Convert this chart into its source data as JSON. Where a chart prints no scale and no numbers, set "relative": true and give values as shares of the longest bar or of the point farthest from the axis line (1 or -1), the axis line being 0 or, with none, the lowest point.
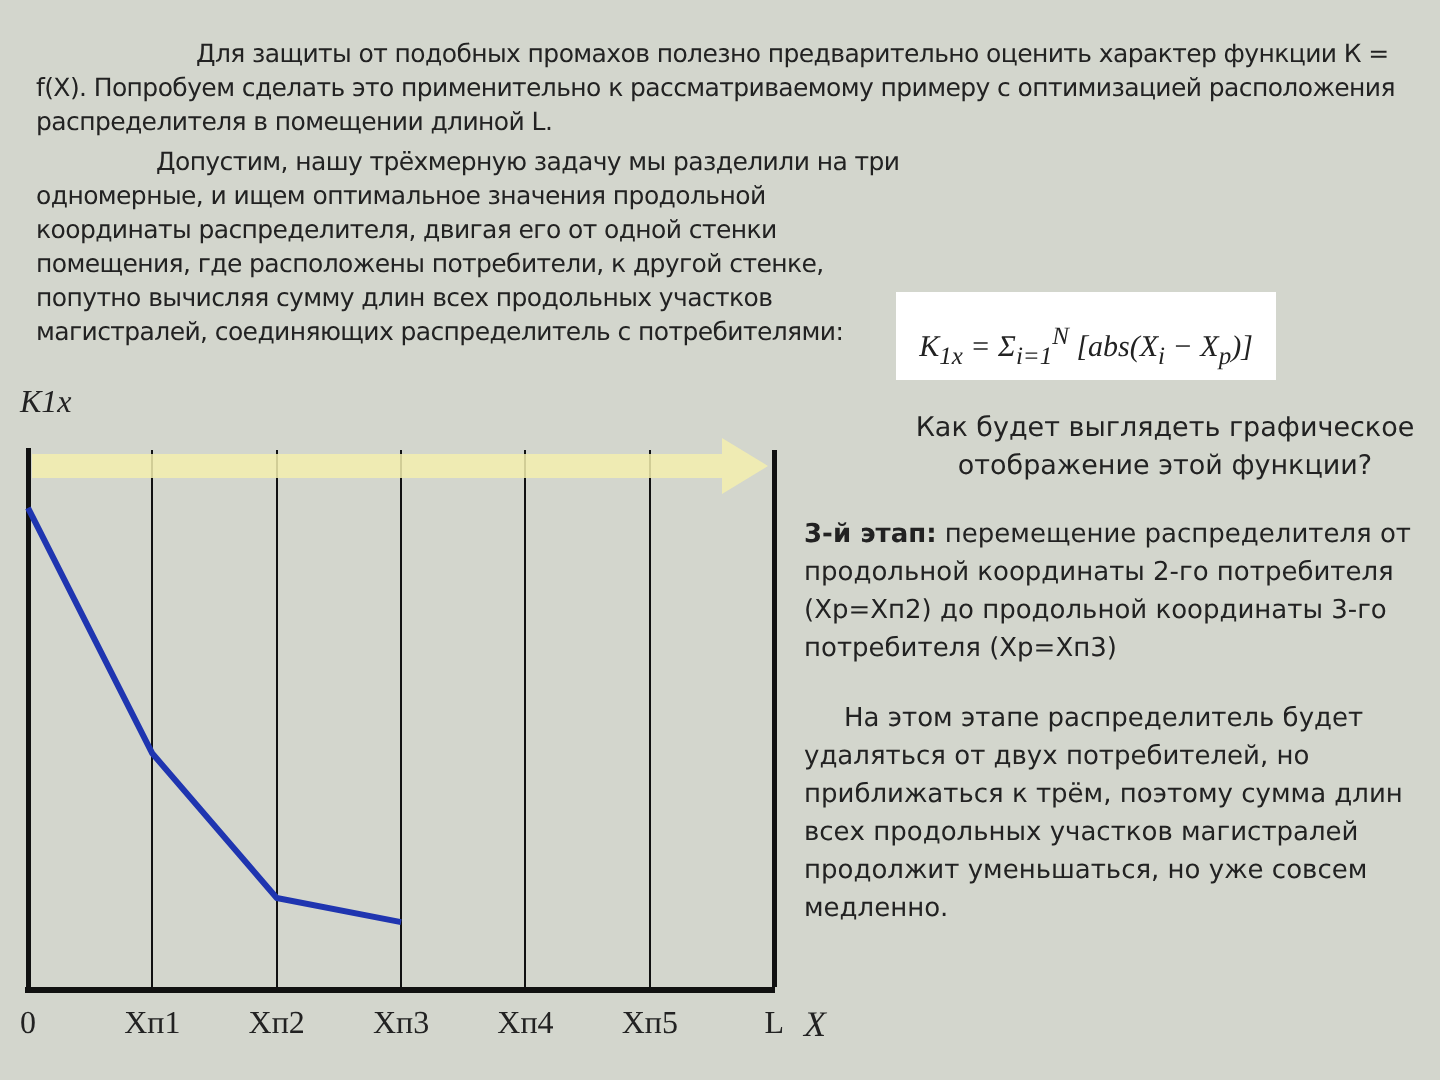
{
  "chart_data": {
    "type": "line",
    "relative": true,
    "categories": [
      "0",
      "Xп1",
      "Xп2",
      "Xп3",
      "Xп4",
      "Xп5",
      "L"
    ],
    "series": [
      {
        "color": "#1f35b0",
        "values": [
          1,
          0.49,
          0.19,
          0.14,
          null,
          null,
          null
        ]
      }
    ],
    "xlabel": "X",
    "ylabel": "K1x",
    "grid": "x",
    "legend": false,
    "marker": "none",
    "line_style": "solid",
    "annotations": [
      "Для защиты от подобных промахов полезно предварительно оценить характер функции К = f(X). Попробуем сделать это применительно к рассматриваемому примеру с оптимизацией расположения распределителя в помещении длиной L.",
      "Допустим, нашу трёхмерную задачу мы разделили на три одномерные, и ищем оптимальное значения продольной координаты распределителя, двигая его от одной стенки помещения, где расположены потребители, к другой стенке, попутно вычисляя сумму длин всех продольных участков магистралей, соединяющих распределитель с потребителями:",
      "K$_{1x}$ = Σ$_{i=1}$$^{N}$ [abs(X$_{i}$ − X$_{p}$)]",
      "Как будет выглядеть графическое отображение этой функции?",
      "3-й этап:",
      "перемещение распределителя от продольной координаты 2-го потребителя (Xр=Xп2) до продольной координаты 3-го потребителя (Xр=Xп3)",
      "На этом этапе распределитель будет удаляться от двух потребителей, но приближаться к трём, поэтому сумма длин всех продольных участков магистралей продолжит уменьшаться, но уже совсем медленно."
    ]
  }
}
